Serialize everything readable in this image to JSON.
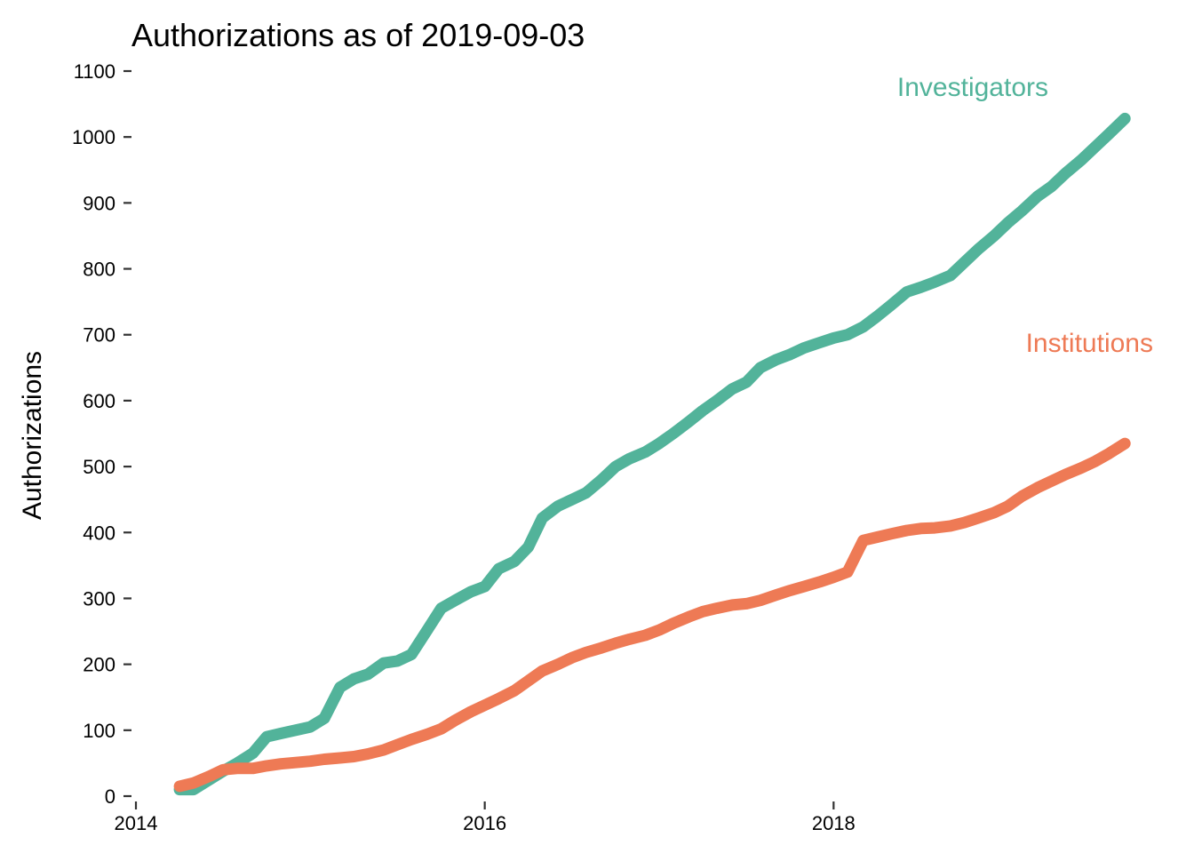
{
  "chart_data": {
    "type": "line",
    "title": "Authorizations as of  2019-09-03",
    "xlabel": "",
    "ylabel": "Authorizations",
    "xlim": [
      2014.0,
      2019.72
    ],
    "ylim": [
      0,
      1100
    ],
    "x_ticks": [
      {
        "value": 2014,
        "label": "2014"
      },
      {
        "value": 2016,
        "label": "2016"
      },
      {
        "value": 2018,
        "label": "2018"
      }
    ],
    "y_ticks": [
      {
        "value": 0,
        "label": "0"
      },
      {
        "value": 100,
        "label": "100"
      },
      {
        "value": 200,
        "label": "200"
      },
      {
        "value": 300,
        "label": "300"
      },
      {
        "value": 400,
        "label": "400"
      },
      {
        "value": 500,
        "label": "500"
      },
      {
        "value": 600,
        "label": "600"
      },
      {
        "value": 700,
        "label": "700"
      },
      {
        "value": 800,
        "label": "800"
      },
      {
        "value": 900,
        "label": "900"
      },
      {
        "value": 1000,
        "label": "1000"
      },
      {
        "value": 1100,
        "label": "1100"
      }
    ],
    "grid": false,
    "legend": "direct labels at series ends",
    "series": [
      {
        "name": "Investigators",
        "color": "#52b39a",
        "x": [
          2014.25,
          2014.33,
          2014.5,
          2014.58,
          2014.67,
          2014.75,
          2014.83,
          2015.0,
          2015.08,
          2015.17,
          2015.25,
          2015.33,
          2015.42,
          2015.5,
          2015.58,
          2015.67,
          2015.75,
          2015.83,
          2015.92,
          2016.0,
          2016.08,
          2016.17,
          2016.25,
          2016.33,
          2016.42,
          2016.5,
          2016.58,
          2016.67,
          2016.75,
          2016.83,
          2016.92,
          2017.0,
          2017.08,
          2017.17,
          2017.25,
          2017.33,
          2017.42,
          2017.5,
          2017.58,
          2017.67,
          2017.75,
          2017.83,
          2017.92,
          2018.0,
          2018.08,
          2018.17,
          2018.25,
          2018.33,
          2018.42,
          2018.5,
          2018.58,
          2018.67,
          2018.75,
          2018.83,
          2018.92,
          2019.0,
          2019.08,
          2019.17,
          2019.25,
          2019.33,
          2019.42,
          2019.5,
          2019.58,
          2019.67
        ],
        "y": [
          10,
          10,
          38,
          50,
          65,
          90,
          95,
          105,
          118,
          165,
          178,
          185,
          202,
          205,
          215,
          252,
          285,
          297,
          310,
          318,
          345,
          356,
          378,
          422,
          440,
          450,
          460,
          480,
          500,
          512,
          522,
          535,
          550,
          568,
          585,
          600,
          618,
          628,
          650,
          662,
          670,
          680,
          688,
          695,
          700,
          712,
          728,
          745,
          765,
          772,
          780,
          790,
          810,
          830,
          850,
          870,
          888,
          910,
          925,
          945,
          965,
          985,
          1005,
          1028
        ]
      },
      {
        "name": "Institutions",
        "color": "#ee7a55",
        "x": [
          2014.25,
          2014.33,
          2014.42,
          2014.5,
          2014.58,
          2014.67,
          2014.75,
          2014.83,
          2015.0,
          2015.08,
          2015.17,
          2015.25,
          2015.33,
          2015.42,
          2015.5,
          2015.58,
          2015.67,
          2015.75,
          2015.83,
          2015.92,
          2016.0,
          2016.08,
          2016.17,
          2016.25,
          2016.33,
          2016.42,
          2016.5,
          2016.58,
          2016.67,
          2016.75,
          2016.83,
          2016.92,
          2017.0,
          2017.08,
          2017.17,
          2017.25,
          2017.33,
          2017.42,
          2017.5,
          2017.58,
          2017.67,
          2017.75,
          2017.83,
          2017.92,
          2018.0,
          2018.08,
          2018.17,
          2018.25,
          2018.33,
          2018.42,
          2018.5,
          2018.58,
          2018.67,
          2018.75,
          2018.83,
          2018.92,
          2019.0,
          2019.08,
          2019.17,
          2019.25,
          2019.33,
          2019.42,
          2019.5,
          2019.58,
          2019.67
        ],
        "y": [
          15,
          20,
          30,
          40,
          42,
          42,
          46,
          49,
          53,
          56,
          58,
          60,
          64,
          70,
          78,
          86,
          94,
          102,
          115,
          128,
          138,
          148,
          160,
          175,
          190,
          200,
          210,
          218,
          225,
          232,
          238,
          244,
          252,
          262,
          272,
          280,
          285,
          290,
          292,
          297,
          305,
          312,
          318,
          325,
          332,
          340,
          388,
          393,
          398,
          403,
          406,
          407,
          410,
          415,
          422,
          430,
          440,
          455,
          468,
          478,
          488,
          498,
          508,
          520,
          535
        ]
      }
    ]
  }
}
